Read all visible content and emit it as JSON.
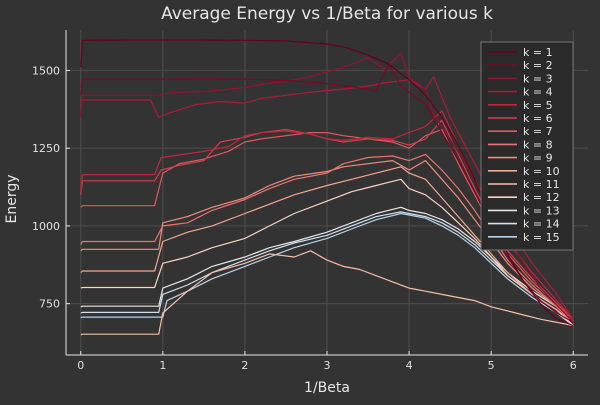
{
  "chart_data": {
    "type": "line",
    "title": "Average Energy vs 1/Beta for various k",
    "xlabel": "1/Beta",
    "ylabel": "Energy",
    "xlim": [
      -0.18,
      6.18
    ],
    "ylim": [
      585,
      1630
    ],
    "xticks": [
      0,
      1,
      2,
      3,
      4,
      5,
      6
    ],
    "yticks": [
      750,
      1000,
      1250,
      1500
    ],
    "grid": true,
    "legend_position": "top-right",
    "colors": {
      "background": "#333333",
      "axis": "#e6e6e6",
      "grid": "#4d4d4d",
      "legend_bg": "#2a2a2a"
    },
    "series": [
      {
        "name": "k = 1",
        "color": "#67001f",
        "x": [
          0,
          0.02,
          0.5,
          1.0,
          1.5,
          2.0,
          2.5,
          3.0,
          3.25,
          3.5,
          3.75,
          4.0,
          4.2,
          4.4,
          4.6,
          4.8,
          5.0,
          5.2,
          5.4,
          5.6,
          5.8,
          6.0
        ],
        "y": [
          1510,
          1597,
          1598,
          1598,
          1598,
          1597,
          1595,
          1585,
          1572,
          1550,
          1520,
          1470,
          1420,
          1350,
          1260,
          1150,
          1020,
          910,
          820,
          750,
          700,
          680
        ]
      },
      {
        "name": "k = 2",
        "color": "#7d0726",
        "x": [
          0,
          0.02,
          0.5,
          1.0,
          1.5,
          2.0,
          2.5,
          3.0,
          3.3,
          3.6,
          3.75,
          3.9,
          4.0,
          4.2,
          4.4,
          4.6,
          4.8,
          5.0,
          5.2,
          5.4,
          5.6,
          5.8,
          6.0
        ],
        "y": [
          1420,
          1472,
          1472,
          1472,
          1473,
          1472,
          1468,
          1458,
          1448,
          1435,
          1520,
          1450,
          1430,
          1390,
          1300,
          1210,
          1110,
          1000,
          900,
          820,
          760,
          720,
          690
        ]
      },
      {
        "name": "k = 3",
        "color": "#94112f",
        "x": [
          0,
          0.02,
          0.95,
          1.0,
          1.2,
          1.5,
          1.8,
          2.0,
          2.2,
          2.5,
          2.8,
          3.0,
          3.2,
          3.5,
          3.7,
          3.9,
          4.0,
          4.2,
          4.3,
          4.5,
          4.8,
          5.0,
          5.3,
          5.6,
          6.0
        ],
        "y": [
          1350,
          1420,
          1420,
          1425,
          1430,
          1432,
          1440,
          1445,
          1455,
          1465,
          1480,
          1495,
          1510,
          1540,
          1505,
          1555,
          1480,
          1440,
          1360,
          1280,
          1150,
          1040,
          920,
          800,
          690
        ]
      },
      {
        "name": "k = 4",
        "color": "#ab1c37",
        "x": [
          0,
          0.02,
          0.85,
          0.95,
          1.1,
          1.4,
          1.7,
          2.0,
          2.2,
          2.5,
          2.8,
          3.0,
          3.2,
          3.5,
          3.7,
          4.0,
          4.2,
          4.3,
          4.5,
          4.8,
          5.0,
          5.2,
          5.5,
          5.8,
          6.0
        ],
        "y": [
          1390,
          1405,
          1405,
          1350,
          1365,
          1390,
          1400,
          1395,
          1410,
          1420,
          1430,
          1435,
          1440,
          1450,
          1460,
          1470,
          1440,
          1480,
          1350,
          1200,
          1100,
          1000,
          880,
          780,
          700
        ]
      },
      {
        "name": "k = 5",
        "color": "#c1263e",
        "x": [
          0,
          0.02,
          0.9,
          0.98,
          1.2,
          1.5,
          1.8,
          2.0,
          2.2,
          2.5,
          2.8,
          3.0,
          3.2,
          3.5,
          3.8,
          4.0,
          4.2,
          4.4,
          4.6,
          4.8,
          5.0,
          5.2,
          5.5,
          5.8,
          6.0
        ],
        "y": [
          1110,
          1165,
          1165,
          1220,
          1228,
          1240,
          1255,
          1290,
          1300,
          1305,
          1295,
          1280,
          1275,
          1285,
          1280,
          1300,
          1320,
          1370,
          1260,
          1150,
          1050,
          950,
          850,
          760,
          700
        ]
      },
      {
        "name": "k = 6",
        "color": "#cf3f4e",
        "x": [
          0,
          0.02,
          0.9,
          0.98,
          1.2,
          1.5,
          1.7,
          2.0,
          2.2,
          2.5,
          2.8,
          3.0,
          3.2,
          3.5,
          3.8,
          4.0,
          4.2,
          4.4,
          4.6,
          4.8,
          5.0,
          5.2,
          5.5,
          5.8,
          6.0
        ],
        "y": [
          1100,
          1145,
          1145,
          1180,
          1195,
          1210,
          1270,
          1285,
          1300,
          1310,
          1295,
          1280,
          1270,
          1280,
          1275,
          1260,
          1280,
          1340,
          1230,
          1120,
          1020,
          920,
          830,
          750,
          700
        ]
      },
      {
        "name": "k = 7",
        "color": "#dc5a5f",
        "x": [
          0,
          0.02,
          0.9,
          1.0,
          1.2,
          1.5,
          1.8,
          2.0,
          2.2,
          2.5,
          2.8,
          3.0,
          3.2,
          3.5,
          3.8,
          4.0,
          4.2,
          4.4,
          4.6,
          4.8,
          5.0,
          5.2,
          5.5,
          5.8,
          6.0
        ],
        "y": [
          1060,
          1065,
          1065,
          1170,
          1200,
          1215,
          1240,
          1270,
          1280,
          1290,
          1300,
          1300,
          1290,
          1280,
          1270,
          1250,
          1290,
          1310,
          1200,
          1100,
          1000,
          910,
          820,
          750,
          690
        ]
      },
      {
        "name": "k = 8",
        "color": "#e8746f",
        "x": [
          0,
          0.02,
          0.9,
          1.0,
          1.3,
          1.6,
          2.0,
          2.3,
          2.6,
          3.0,
          3.2,
          3.5,
          3.8,
          4.0,
          4.2,
          4.4,
          4.6,
          4.8,
          5.0,
          5.2,
          5.5,
          5.8,
          6.0
        ],
        "y": [
          940,
          950,
          950,
          1000,
          1010,
          1050,
          1085,
          1120,
          1150,
          1170,
          1200,
          1220,
          1225,
          1210,
          1230,
          1180,
          1120,
          1050,
          970,
          890,
          810,
          740,
          690
        ]
      },
      {
        "name": "k = 9",
        "color": "#f08d7f",
        "x": [
          0,
          0.02,
          0.95,
          1.0,
          1.3,
          1.6,
          2.0,
          2.3,
          2.6,
          3.0,
          3.2,
          3.5,
          3.8,
          4.0,
          4.2,
          4.4,
          4.6,
          4.8,
          5.0,
          5.2,
          5.5,
          5.8,
          6.0
        ],
        "y": [
          920,
          925,
          925,
          1010,
          1030,
          1060,
          1090,
          1130,
          1160,
          1175,
          1190,
          1200,
          1210,
          1180,
          1210,
          1150,
          1090,
          1020,
          950,
          880,
          800,
          740,
          690
        ]
      },
      {
        "name": "k = 10",
        "color": "#f4a68f",
        "x": [
          0,
          0.02,
          0.9,
          1.0,
          1.3,
          1.6,
          2.0,
          2.3,
          2.6,
          3.0,
          3.3,
          3.6,
          3.9,
          4.0,
          4.2,
          4.4,
          4.6,
          4.8,
          5.0,
          5.2,
          5.5,
          5.8,
          6.0
        ],
        "y": [
          850,
          855,
          855,
          950,
          980,
          1000,
          1040,
          1070,
          1100,
          1130,
          1150,
          1170,
          1190,
          1170,
          1150,
          1090,
          1030,
          970,
          910,
          850,
          780,
          730,
          690
        ]
      },
      {
        "name": "k = 11",
        "color": "#f7bea6",
        "x": [
          0,
          0.02,
          0.95,
          1.0,
          1.3,
          1.6,
          2.0,
          2.3,
          2.6,
          2.8,
          3.0,
          3.2,
          3.4,
          3.6,
          3.8,
          4.0,
          4.2,
          4.4,
          4.6,
          4.8,
          5.0,
          5.3,
          5.6,
          6.0
        ],
        "y": [
          650,
          652,
          652,
          720,
          790,
          850,
          880,
          910,
          900,
          920,
          890,
          870,
          860,
          840,
          820,
          800,
          790,
          780,
          770,
          760,
          740,
          720,
          700,
          680
        ]
      },
      {
        "name": "k = 12",
        "color": "#fad4c0",
        "x": [
          0,
          0.02,
          0.9,
          1.0,
          1.3,
          1.6,
          2.0,
          2.3,
          2.6,
          3.0,
          3.3,
          3.6,
          3.9,
          4.0,
          4.2,
          4.4,
          4.6,
          4.8,
          5.0,
          5.2,
          5.5,
          5.8,
          6.0
        ],
        "y": [
          800,
          802,
          802,
          880,
          900,
          930,
          960,
          1000,
          1040,
          1080,
          1110,
          1130,
          1150,
          1120,
          1100,
          1060,
          1010,
          960,
          900,
          840,
          780,
          730,
          680
        ]
      },
      {
        "name": "k = 13",
        "color": "#e8e6e8",
        "x": [
          0,
          0.02,
          0.95,
          1.0,
          1.3,
          1.6,
          2.0,
          2.3,
          2.6,
          3.0,
          3.3,
          3.6,
          3.9,
          4.0,
          4.2,
          4.4,
          4.6,
          4.8,
          5.0,
          5.2,
          5.5,
          5.8,
          6.0
        ],
        "y": [
          740,
          742,
          742,
          800,
          830,
          870,
          900,
          930,
          950,
          980,
          1010,
          1040,
          1060,
          1050,
          1040,
          1020,
          990,
          950,
          900,
          850,
          790,
          740,
          690
        ]
      },
      {
        "name": "k = 14",
        "color": "#cfe1ee",
        "x": [
          0,
          0.02,
          0.95,
          1.0,
          1.3,
          1.6,
          2.0,
          2.3,
          2.6,
          3.0,
          3.3,
          3.6,
          3.9,
          4.0,
          4.2,
          4.4,
          4.6,
          4.8,
          5.0,
          5.2,
          5.5,
          5.8,
          6.0
        ],
        "y": [
          720,
          722,
          722,
          780,
          810,
          850,
          890,
          920,
          945,
          970,
          1000,
          1030,
          1045,
          1040,
          1030,
          1010,
          980,
          940,
          890,
          840,
          780,
          730,
          680
        ]
      },
      {
        "name": "k = 15",
        "color": "#b6d4e9",
        "x": [
          0,
          0.02,
          1.0,
          1.05,
          1.3,
          1.6,
          2.0,
          2.3,
          2.6,
          3.0,
          3.3,
          3.6,
          3.9,
          4.0,
          4.2,
          4.4,
          4.6,
          4.8,
          5.0,
          5.2,
          5.5,
          5.8,
          6.0
        ],
        "y": [
          705,
          707,
          707,
          760,
          790,
          830,
          870,
          900,
          930,
          960,
          990,
          1020,
          1040,
          1035,
          1025,
          1000,
          970,
          930,
          880,
          830,
          770,
          720,
          680
        ]
      }
    ]
  }
}
